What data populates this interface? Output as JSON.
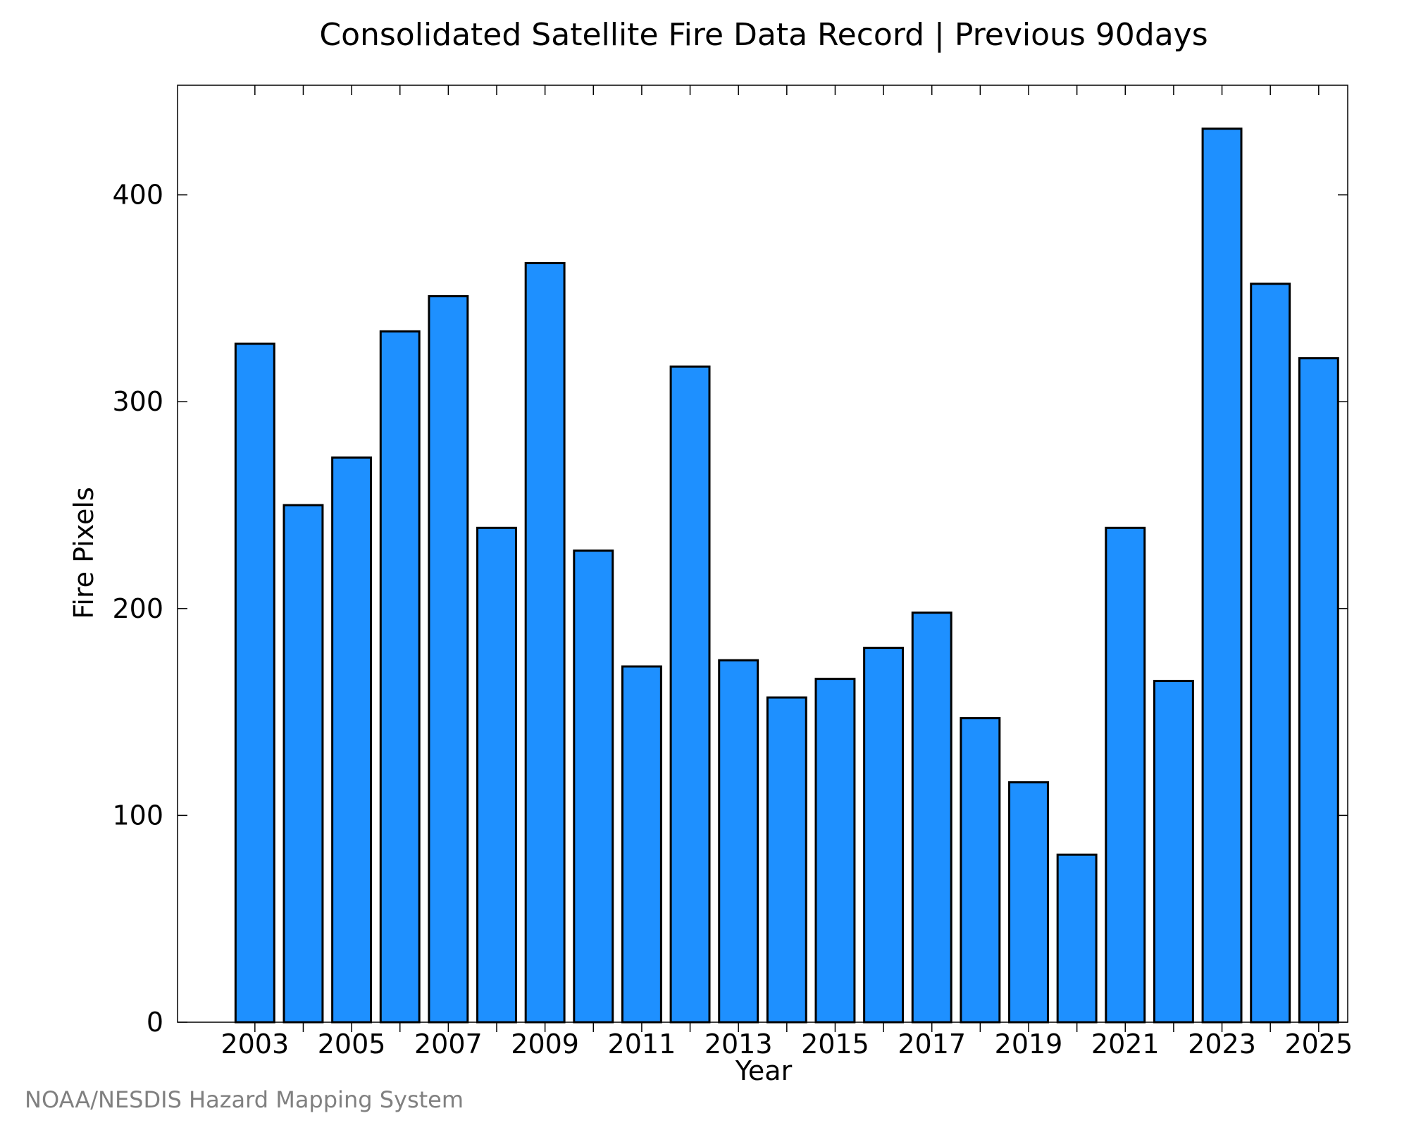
{
  "chart_data": {
    "type": "bar",
    "title": "Consolidated Satellite Fire Data Record | Previous 90days",
    "xlabel": "Year",
    "ylabel": "Fire Pixels",
    "credit": "NOAA/NESDIS Hazard Mapping System",
    "categories": [
      2003,
      2004,
      2005,
      2006,
      2007,
      2008,
      2009,
      2010,
      2011,
      2012,
      2013,
      2014,
      2015,
      2016,
      2017,
      2018,
      2019,
      2020,
      2021,
      2022,
      2023,
      2024,
      2025
    ],
    "values": [
      328,
      250,
      273,
      334,
      351,
      239,
      367,
      228,
      172,
      317,
      175,
      157,
      166,
      181,
      198,
      147,
      116,
      81,
      239,
      165,
      432,
      357,
      321
    ],
    "x_tick_labels": [
      "2003",
      "2005",
      "2007",
      "2009",
      "2011",
      "2013",
      "2015",
      "2017",
      "2019",
      "2021",
      "2023",
      "2025"
    ],
    "y_ticks": [
      0,
      100,
      200,
      300,
      400
    ],
    "ylim": [
      0,
      453
    ],
    "xlim": [
      2001.4,
      2025.6
    ],
    "bar_color": "#1e90ff",
    "bar_edge_color": "#000000",
    "grid": false,
    "legend": "none"
  }
}
